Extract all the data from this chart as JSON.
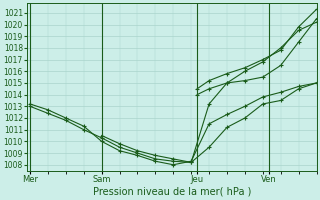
{
  "title": "Pression niveau de la mer( hPa )",
  "background_color": "#cceee8",
  "grid_color": "#aad4cc",
  "line_color": "#1a5c1a",
  "ylim": [
    1007.5,
    1021.8
  ],
  "yticks": [
    1008,
    1009,
    1010,
    1011,
    1012,
    1013,
    1014,
    1015,
    1016,
    1017,
    1018,
    1019,
    1020,
    1021
  ],
  "xtick_labels": [
    "Mer",
    "Sam",
    "Jeu",
    "Ven"
  ],
  "xtick_positions": [
    0,
    24,
    56,
    80
  ],
  "xlim": [
    -1,
    96
  ],
  "vlines": [
    0,
    24,
    56,
    80
  ],
  "series": [
    {
      "x": [
        0,
        6,
        12,
        18,
        24,
        30,
        36,
        42,
        48,
        54,
        60,
        66,
        72,
        78,
        84,
        90,
        96
      ],
      "y": [
        1013.0,
        1012.4,
        1011.8,
        1011.0,
        1010.3,
        1009.5,
        1009.0,
        1008.5,
        1008.3,
        1008.2,
        1009.5,
        1011.2,
        1012.0,
        1013.2,
        1013.5,
        1014.5,
        1015.0
      ]
    },
    {
      "x": [
        0,
        6,
        12,
        18,
        24,
        30,
        36,
        42,
        48,
        54,
        60,
        66,
        72,
        78,
        84,
        90,
        96
      ],
      "y": [
        1013.2,
        1012.7,
        1012.0,
        1011.3,
        1010.0,
        1009.2,
        1008.8,
        1008.3,
        1008.0,
        1008.3,
        1011.5,
        1012.3,
        1013.0,
        1013.8,
        1014.2,
        1014.7,
        1015.0
      ]
    },
    {
      "x": [
        24,
        30,
        36,
        42,
        48,
        54,
        60,
        66,
        72,
        78,
        84,
        90,
        96
      ],
      "y": [
        1010.5,
        1009.8,
        1009.2,
        1008.8,
        1008.5,
        1008.2,
        1013.2,
        1015.0,
        1016.0,
        1016.8,
        1018.0,
        1019.5,
        1020.2
      ]
    },
    {
      "x": [
        56,
        60,
        66,
        72,
        78,
        84,
        90,
        96
      ],
      "y": [
        1014.0,
        1014.5,
        1015.0,
        1015.2,
        1015.5,
        1016.5,
        1018.5,
        1020.5
      ]
    },
    {
      "x": [
        56,
        60,
        66,
        72,
        78,
        84,
        90,
        96
      ],
      "y": [
        1014.5,
        1015.2,
        1015.8,
        1016.3,
        1017.0,
        1017.8,
        1019.8,
        1021.3
      ]
    }
  ],
  "marker": "+",
  "markersize": 3.5,
  "linewidth": 0.8
}
